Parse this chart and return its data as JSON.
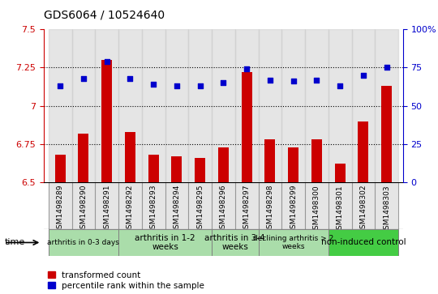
{
  "title": "GDS6064 / 10524640",
  "samples": [
    "GSM1498289",
    "GSM1498290",
    "GSM1498291",
    "GSM1498292",
    "GSM1498293",
    "GSM1498294",
    "GSM1498295",
    "GSM1498296",
    "GSM1498297",
    "GSM1498298",
    "GSM1498299",
    "GSM1498300",
    "GSM1498301",
    "GSM1498302",
    "GSM1498303"
  ],
  "transformed_count": [
    6.68,
    6.82,
    7.3,
    6.83,
    6.68,
    6.67,
    6.66,
    6.73,
    7.22,
    6.78,
    6.73,
    6.78,
    6.62,
    6.9,
    7.13
  ],
  "percentile_rank": [
    63,
    68,
    79,
    68,
    64,
    63,
    63,
    65,
    74,
    67,
    66,
    67,
    63,
    70,
    75
  ],
  "ylim_left": [
    6.5,
    7.5
  ],
  "ylim_right": [
    0,
    100
  ],
  "yticks_left": [
    6.5,
    6.75,
    7.0,
    7.25,
    7.5
  ],
  "yticks_left_labels": [
    "6.5",
    "6.75",
    "7",
    "7.25",
    "7.5"
  ],
  "yticks_right": [
    0,
    25,
    50,
    75,
    100
  ],
  "yticks_right_labels": [
    "0",
    "25",
    "50",
    "75",
    "100%"
  ],
  "group_spans": [
    {
      "start": 0,
      "end": 2,
      "label": "arthritis in 0-3 days",
      "color": "#aaddaa",
      "fontsize": 6.5
    },
    {
      "start": 3,
      "end": 6,
      "label": "arthritis in 1-2\nweeks",
      "color": "#aaddaa",
      "fontsize": 7.5
    },
    {
      "start": 7,
      "end": 8,
      "label": "arthritis in 3-4\nweeks",
      "color": "#aaddaa",
      "fontsize": 7.5
    },
    {
      "start": 9,
      "end": 11,
      "label": "declining arthritis > 2\nweeks",
      "color": "#aaddaa",
      "fontsize": 6.5
    },
    {
      "start": 12,
      "end": 14,
      "label": "non-induced control",
      "color": "#44cc44",
      "fontsize": 7.5
    }
  ],
  "bar_color": "#cc0000",
  "dot_color": "#0000cc",
  "tick_color_left": "#cc0000",
  "tick_color_right": "#0000cc",
  "legend_bar_label": "transformed count",
  "legend_dot_label": "percentile rank within the sample",
  "col_bg_color": "#cccccc",
  "grid_lines": [
    6.75,
    7.0,
    7.25
  ],
  "bar_width": 0.45
}
